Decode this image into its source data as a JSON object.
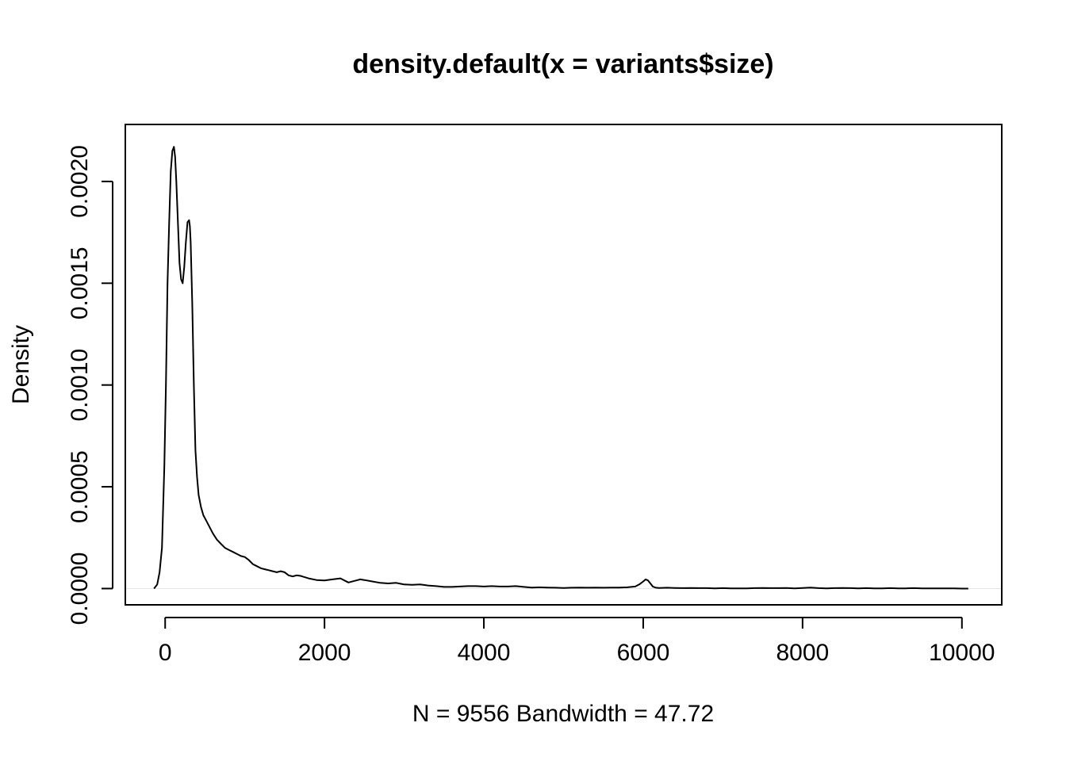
{
  "chart_data": {
    "type": "line",
    "title": "density.default(x = variants$size)",
    "xlabel": "N = 9556   Bandwidth = 47.72",
    "ylabel": "Density",
    "xlim": [
      -500,
      10500
    ],
    "ylim": [
      -8e-05,
      0.00228
    ],
    "xticks": [
      0,
      2000,
      4000,
      6000,
      8000,
      10000
    ],
    "xtick_labels": [
      "0",
      "2000",
      "4000",
      "6000",
      "8000",
      "10000"
    ],
    "yticks": [
      0,
      0.0005,
      0.001,
      0.0015,
      0.002
    ],
    "ytick_labels": [
      "0.0000",
      "0.0005",
      "0.0010",
      "0.0015",
      "0.0020"
    ],
    "grid": false,
    "baseline": 0,
    "baseline_color": "#e6e6e6",
    "line_color": "#000000",
    "series": [
      {
        "x": [
          -140,
          -100,
          -70,
          -40,
          -10,
          10,
          30,
          50,
          70,
          90,
          110,
          125,
          140,
          160,
          180,
          200,
          220,
          240,
          260,
          280,
          300,
          310,
          320,
          340,
          360,
          380,
          400,
          420,
          450,
          480,
          520,
          560,
          600,
          650,
          700,
          750,
          800,
          850,
          900,
          950,
          1000,
          1050,
          1100,
          1150,
          1200,
          1250,
          1300,
          1350,
          1400,
          1450,
          1500,
          1550,
          1600,
          1650,
          1700,
          1800,
          1900,
          2000,
          2100,
          2200,
          2300,
          2400,
          2450,
          2500,
          2600,
          2700,
          2800,
          2900,
          3000,
          3100,
          3200,
          3300,
          3400,
          3500,
          3600,
          3700,
          3800,
          3900,
          4000,
          4100,
          4200,
          4300,
          4400,
          4500,
          4600,
          4700,
          4800,
          4900,
          5000,
          5100,
          5200,
          5300,
          5400,
          5500,
          5600,
          5700,
          5800,
          5900,
          5950,
          6000,
          6030,
          6060,
          6090,
          6120,
          6160,
          6200,
          6300,
          6400,
          6500,
          6600,
          6700,
          6800,
          6900,
          7000,
          7100,
          7200,
          7300,
          7400,
          7500,
          7600,
          7700,
          7800,
          7900,
          8000,
          8100,
          8200,
          8300,
          8400,
          8500,
          8600,
          8700,
          8800,
          8900,
          9000,
          9100,
          9200,
          9300,
          9400,
          9500,
          9600,
          9700,
          9800,
          9900,
          10000,
          10080
        ],
        "y": [
          0.0,
          2e-05,
          8e-05,
          0.0002,
          0.0006,
          0.001,
          0.0015,
          0.0018,
          0.00205,
          0.00215,
          0.00217,
          0.00212,
          0.002,
          0.0018,
          0.0016,
          0.00152,
          0.0015,
          0.00158,
          0.0017,
          0.0018,
          0.00181,
          0.00178,
          0.0017,
          0.0014,
          0.001,
          0.00068,
          0.00055,
          0.00046,
          0.0004,
          0.00036,
          0.00033,
          0.0003,
          0.00027,
          0.00024,
          0.00022,
          0.0002,
          0.00019,
          0.00018,
          0.00017,
          0.00016,
          0.000155,
          0.00014,
          0.00012,
          0.00011,
          0.0001,
          9.5e-05,
          9e-05,
          8.5e-05,
          8e-05,
          8.5e-05,
          8e-05,
          6.5e-05,
          6e-05,
          6.5e-05,
          6.2e-05,
          5e-05,
          4.2e-05,
          4e-05,
          4.5e-05,
          5e-05,
          3e-05,
          4e-05,
          4.5e-05,
          4.2e-05,
          3.5e-05,
          2.8e-05,
          2.5e-05,
          2.8e-05,
          2e-05,
          1.8e-05,
          2e-05,
          1.5e-05,
          1.2e-05,
          8e-06,
          8e-06,
          1e-05,
          1.2e-05,
          1.2e-05,
          1e-05,
          1.2e-05,
          1e-05,
          1e-05,
          1.2e-05,
          8e-06,
          5e-06,
          6e-06,
          5e-06,
          4e-06,
          3e-06,
          4e-06,
          5e-06,
          4e-06,
          5e-06,
          4e-06,
          5e-06,
          5e-06,
          6e-06,
          1e-05,
          2e-05,
          3.5e-05,
          4.5e-05,
          4e-05,
          2.5e-05,
          1e-05,
          4e-06,
          3e-06,
          4e-06,
          3e-06,
          2e-06,
          3e-06,
          2e-06,
          2e-06,
          1e-06,
          2e-06,
          1e-06,
          1e-06,
          1e-06,
          2e-06,
          3e-06,
          2e-06,
          2e-06,
          3e-06,
          1e-06,
          3e-06,
          5e-06,
          2e-06,
          1e-06,
          2e-06,
          3e-06,
          2e-06,
          1e-06,
          2e-06,
          1e-06,
          1e-06,
          2e-06,
          1e-06,
          1e-06,
          2e-06,
          1e-06,
          1e-06,
          1e-06,
          1e-06,
          1e-06,
          0.0,
          0.0
        ]
      }
    ]
  }
}
